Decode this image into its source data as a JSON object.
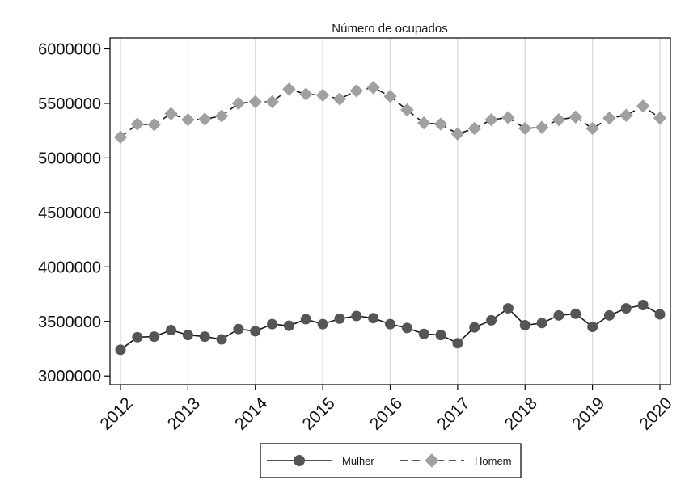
{
  "chart_data": {
    "type": "line",
    "title": "Número de ocupados",
    "xlabel": "",
    "ylabel": "",
    "xlim": [
      2012,
      2020
    ],
    "ylim": [
      2920000,
      6100000
    ],
    "yticks": [
      3000000,
      3500000,
      4000000,
      4500000,
      5000000,
      5500000,
      6000000
    ],
    "ytick_labels": [
      "3000000",
      "3500000",
      "4000000",
      "4500000",
      "5000000",
      "5500000",
      "6000000"
    ],
    "xticks": [
      2012,
      2013,
      2014,
      2015,
      2016,
      2017,
      2018,
      2019,
      2020
    ],
    "xtick_labels": [
      "2012",
      "2013",
      "2014",
      "2015",
      "2016",
      "2017",
      "2018",
      "2019",
      "2020"
    ],
    "grid": "vertical",
    "legend_position": "bottom",
    "x": [
      2012,
      2012.25,
      2012.5,
      2012.75,
      2013,
      2013.25,
      2013.5,
      2013.75,
      2014,
      2014.25,
      2014.5,
      2014.75,
      2015,
      2015.25,
      2015.5,
      2015.75,
      2016,
      2016.25,
      2016.5,
      2016.75,
      2017,
      2017.25,
      2017.5,
      2017.75,
      2018,
      2018.25,
      2018.5,
      2018.75,
      2019,
      2019.25,
      2019.5,
      2019.75,
      2020
    ],
    "series": [
      {
        "name": "Mulher",
        "color": "#1a1a1a",
        "marker": "circle",
        "marker_color": "#555555",
        "line_style": "solid",
        "values": [
          3240000,
          3355000,
          3360000,
          3420000,
          3375000,
          3360000,
          3335000,
          3430000,
          3410000,
          3475000,
          3460000,
          3520000,
          3475000,
          3525000,
          3550000,
          3530000,
          3475000,
          3440000,
          3385000,
          3375000,
          3300000,
          3445000,
          3510000,
          3620000,
          3465000,
          3485000,
          3555000,
          3570000,
          3450000,
          3555000,
          3620000,
          3650000,
          3565000
        ]
      },
      {
        "name": "Homem",
        "color": "#1a1a1a",
        "marker": "diamond",
        "marker_color": "#a0a0a0",
        "line_style": "dashed",
        "values": [
          5190000,
          5310000,
          5305000,
          5405000,
          5350000,
          5355000,
          5385000,
          5500000,
          5515000,
          5515000,
          5630000,
          5585000,
          5575000,
          5540000,
          5615000,
          5645000,
          5565000,
          5440000,
          5320000,
          5310000,
          5220000,
          5270000,
          5350000,
          5370000,
          5270000,
          5280000,
          5350000,
          5375000,
          5270000,
          5365000,
          5390000,
          5475000,
          5365000
        ]
      }
    ]
  }
}
